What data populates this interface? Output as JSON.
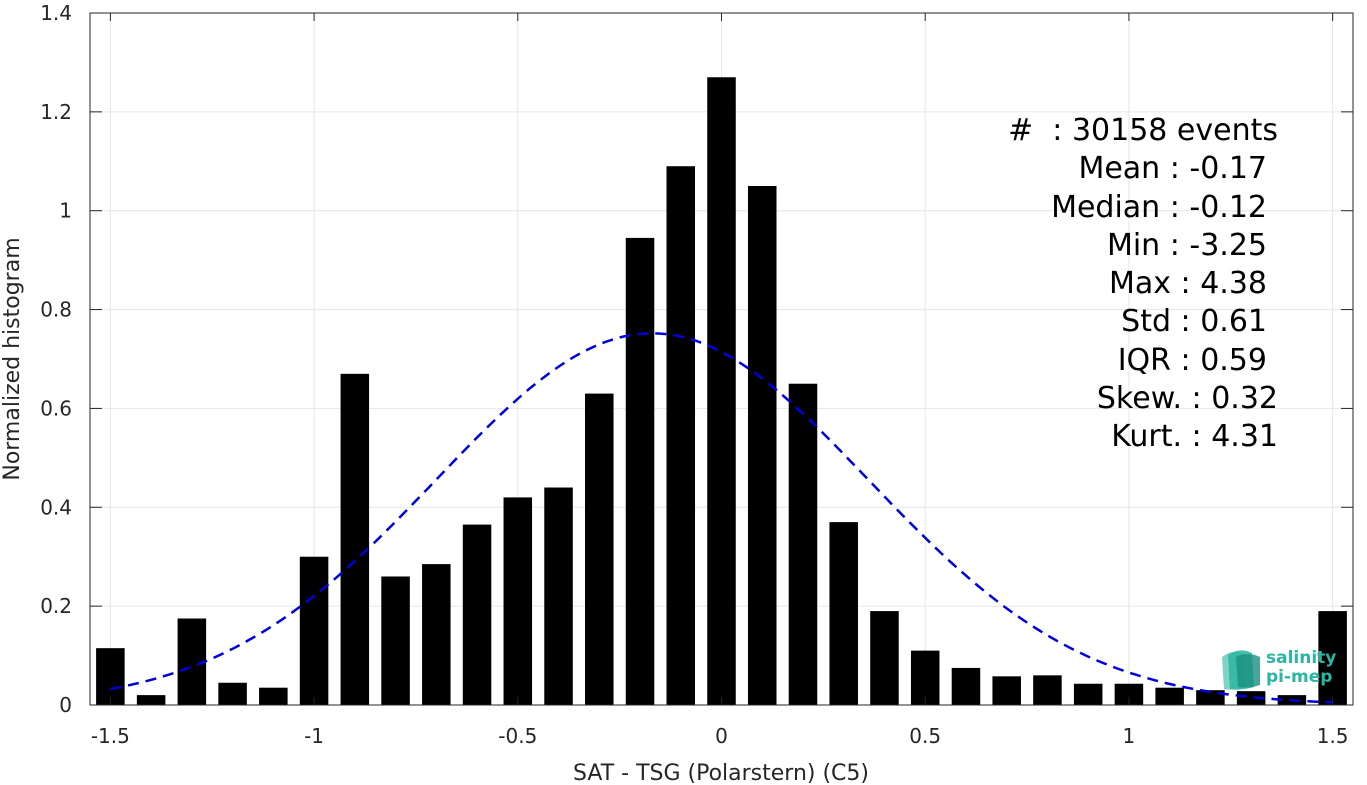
{
  "chart_data": {
    "type": "bar",
    "xlabel": "SAT - TSG (Polarstern) (C5)",
    "ylabel": "Normalized histogram",
    "xlim": [
      -1.55,
      1.55
    ],
    "ylim": [
      0,
      1.4
    ],
    "xticks": [
      -1.5,
      -1,
      -0.5,
      0,
      0.5,
      1,
      1.5
    ],
    "xtick_labels": [
      "-1.5",
      "-1",
      "-0.5",
      "0",
      "0.5",
      "1",
      "1.5"
    ],
    "yticks": [
      0,
      0.2,
      0.4,
      0.6,
      0.8,
      1,
      1.2,
      1.4
    ],
    "ytick_labels": [
      "0",
      "0.2",
      "0.4",
      "0.6",
      "0.8",
      "1",
      "1.2",
      "1.4"
    ],
    "grid": true,
    "bar_width": 0.07,
    "bar_color": "#000000",
    "bins": {
      "x": [
        -1.5,
        -1.4,
        -1.3,
        -1.2,
        -1.1,
        -1.0,
        -0.9,
        -0.8,
        -0.7,
        -0.6,
        -0.5,
        -0.4,
        -0.3,
        -0.2,
        -0.1,
        0.0,
        0.1,
        0.2,
        0.3,
        0.4,
        0.5,
        0.6,
        0.7,
        0.8,
        0.9,
        1.0,
        1.1,
        1.2,
        1.3,
        1.4,
        1.5
      ],
      "y": [
        0.115,
        0.02,
        0.175,
        0.045,
        0.035,
        0.3,
        0.67,
        0.26,
        0.285,
        0.365,
        0.42,
        0.44,
        0.63,
        0.945,
        1.09,
        1.27,
        1.05,
        0.65,
        0.37,
        0.19,
        0.11,
        0.075,
        0.058,
        0.06,
        0.043,
        0.043,
        0.035,
        0.03,
        0.028,
        0.02,
        0.19
      ]
    },
    "fit_curve": {
      "style": "dashed",
      "color": "#0000dd",
      "mean": -0.17,
      "std": 0.53,
      "peak": 0.752,
      "x_range": [
        -1.5,
        1.5
      ]
    },
    "annotations": {
      "count": "#  : 30158 events",
      "mean": "Mean : -0.17",
      "median": "Median : -0.12",
      "min": "Min : -3.25",
      "max": "Max : 4.38",
      "std": "Std : 0.61",
      "iqr": "IQR : 0.59",
      "skew": "Skew. : 0.32",
      "kurt": "Kurt. : 4.31"
    }
  },
  "logo": {
    "line1": "salinity",
    "line2": "pi-mep",
    "color": "#2bb5a3"
  }
}
